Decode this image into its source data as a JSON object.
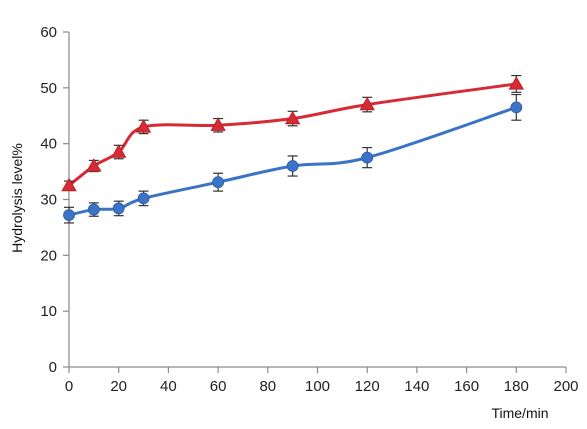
{
  "chart_data": {
    "type": "line",
    "title": "",
    "xlabel": "Time/min",
    "ylabel": "Hydrolysis level%",
    "xlim": [
      0,
      200
    ],
    "ylim": [
      0,
      60
    ],
    "xticks": [
      0,
      20,
      40,
      60,
      80,
      100,
      120,
      140,
      160,
      180,
      200
    ],
    "yticks": [
      0,
      10,
      20,
      30,
      40,
      50,
      60
    ],
    "grid": false,
    "legend": "none",
    "series": [
      {
        "color": "#d62b34",
        "marker": "triangle",
        "x": [
          0,
          10,
          20,
          30,
          60,
          90,
          120,
          180
        ],
        "y": [
          32.5,
          36,
          38.5,
          43,
          43.3,
          44.5,
          47,
          50.7
        ],
        "err": [
          0.8,
          1.0,
          1.2,
          1.2,
          1.2,
          1.3,
          1.3,
          1.5
        ]
      },
      {
        "color": "#3b73c7",
        "marker": "circle",
        "x": [
          0,
          10,
          20,
          30,
          60,
          90,
          120,
          180
        ],
        "y": [
          27.2,
          28.2,
          28.4,
          30.2,
          33.1,
          36.0,
          37.5,
          46.5
        ],
        "err": [
          1.4,
          1.2,
          1.3,
          1.3,
          1.6,
          1.8,
          1.8,
          2.3
        ]
      }
    ]
  }
}
